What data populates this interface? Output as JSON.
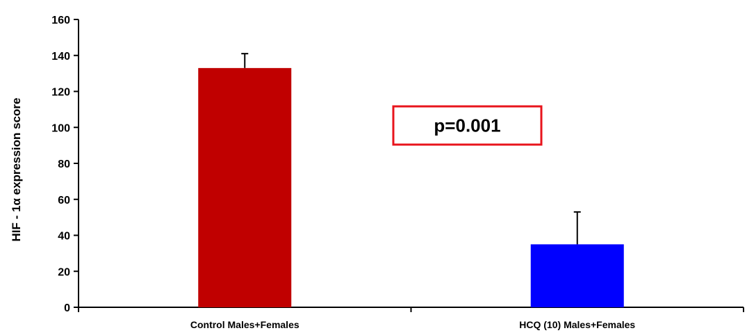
{
  "chart_data": {
    "type": "bar",
    "title": "",
    "xlabel": "",
    "ylabel": "HIF - 1α expression score",
    "ylim": [
      0,
      160
    ],
    "yticks": [
      0,
      20,
      40,
      60,
      80,
      100,
      120,
      140,
      160
    ],
    "grid": false,
    "categories": [
      "Control Males+Females",
      "HCQ (10) Males+Females"
    ],
    "values": [
      133,
      35
    ],
    "errors": [
      8,
      18
    ],
    "bar_colors": [
      "#c00000",
      "#0000ff"
    ],
    "annotation": {
      "text": "p=0.001",
      "border_color": "#e8141c"
    }
  }
}
